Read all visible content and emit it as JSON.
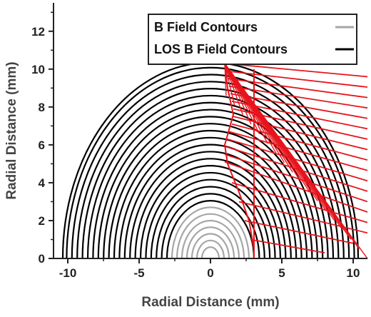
{
  "chart_data": {
    "type": "line",
    "title": "",
    "xlabel": "Radial Distance (mm)",
    "ylabel": "Radial Distance (mm)",
    "xlim": [
      -11,
      11
    ],
    "ylim": [
      0,
      13.5
    ],
    "xticks": [
      -10,
      -5,
      0,
      5,
      10
    ],
    "xtick_labels": [
      "-10",
      "-5",
      "0",
      "5",
      "10"
    ],
    "yticks": [
      0,
      2,
      4,
      6,
      8,
      10,
      12
    ],
    "ytick_labels": [
      "0",
      "2",
      "4",
      "6",
      "8",
      "10",
      "12"
    ],
    "grid": false,
    "legend_position": "top-right",
    "colors": {
      "b_field": "#a6a6a6",
      "los_b_field": "#000000",
      "los_rays": "#e8141c"
    },
    "series": [
      {
        "name": "B Field Contours",
        "kind": "semicircle-contours",
        "radii": [
          0.6,
          0.95,
          1.3,
          1.65,
          2.0,
          2.35,
          2.7
        ]
      },
      {
        "name": "LOS B Field Contours",
        "kind": "semicircle-contours",
        "radii": [
          3.05,
          3.42,
          3.79,
          4.16,
          4.53,
          4.9,
          5.27,
          5.64,
          6.01,
          6.38,
          6.75,
          7.12,
          7.49,
          7.86,
          8.23,
          8.6,
          8.97,
          9.34,
          9.71,
          10.08,
          10.35
        ]
      },
      {
        "kind": "lines-of-sight",
        "color": "red",
        "fan_origin": [
          1.0,
          10.3
        ],
        "fan_end": [
          11.0,
          9.6
        ],
        "lines": [
          {
            "start": [
              1.0,
              10.3
            ],
            "end": [
              11.0,
              9.6
            ]
          },
          {
            "start": [
              1.1,
              9.9
            ],
            "end": [
              11.0,
              9.05
            ]
          },
          {
            "start": [
              1.2,
              9.5
            ],
            "end": [
              11.0,
              8.5
            ]
          },
          {
            "start": [
              1.3,
              9.1
            ],
            "end": [
              11.0,
              7.95
            ]
          },
          {
            "start": [
              1.4,
              8.7
            ],
            "end": [
              11.0,
              7.4
            ]
          },
          {
            "start": [
              1.5,
              8.3
            ],
            "end": [
              11.0,
              6.85
            ]
          },
          {
            "start": [
              1.6,
              7.9
            ],
            "end": [
              11.0,
              6.3
            ]
          },
          {
            "start": [
              1.6,
              7.5
            ],
            "end": [
              11.0,
              5.75
            ]
          },
          {
            "start": [
              1.5,
              7.1
            ],
            "end": [
              11.0,
              5.2
            ]
          },
          {
            "start": [
              1.3,
              6.7
            ],
            "end": [
              11.0,
              4.65
            ]
          },
          {
            "start": [
              1.2,
              6.3
            ],
            "end": [
              11.0,
              4.1
            ]
          },
          {
            "start": [
              1.1,
              5.9
            ],
            "end": [
              11.0,
              3.55
            ]
          },
          {
            "start": [
              1.0,
              5.5
            ],
            "end": [
              11.0,
              3.0
            ]
          },
          {
            "start": [
              1.0,
              5.1
            ],
            "end": [
              11.0,
              2.45
            ]
          },
          {
            "start": [
              1.5,
              4.0
            ],
            "end": [
              11.0,
              1.9
            ]
          },
          {
            "start": [
              2.0,
              3.0
            ],
            "end": [
              11.0,
              1.35
            ]
          },
          {
            "start": [
              2.4,
              2.0
            ],
            "end": [
              10.0,
              0.8
            ]
          },
          {
            "start": [
              2.8,
              1.0
            ],
            "end": [
              8.0,
              0.3
            ]
          },
          {
            "start": [
              3.05,
              0.0
            ],
            "end": [
              5.5,
              0.0
            ]
          }
        ],
        "radial_spine": [
          [
            1.0,
            10.3
          ],
          [
            1.2,
            9.0
          ],
          [
            1.6,
            7.6
          ],
          [
            1.0,
            6.0
          ],
          [
            1.2,
            5.0
          ],
          [
            2.0,
            3.5
          ],
          [
            2.7,
            2.0
          ],
          [
            3.05,
            0.5
          ],
          [
            3.05,
            0.0
          ]
        ],
        "vertical_line_x": 3.05
      }
    ],
    "legend": [
      {
        "label": "B Field Contours",
        "color": "#a6a6a6"
      },
      {
        "label": "LOS B Field Contours",
        "color": "#000000"
      }
    ]
  }
}
